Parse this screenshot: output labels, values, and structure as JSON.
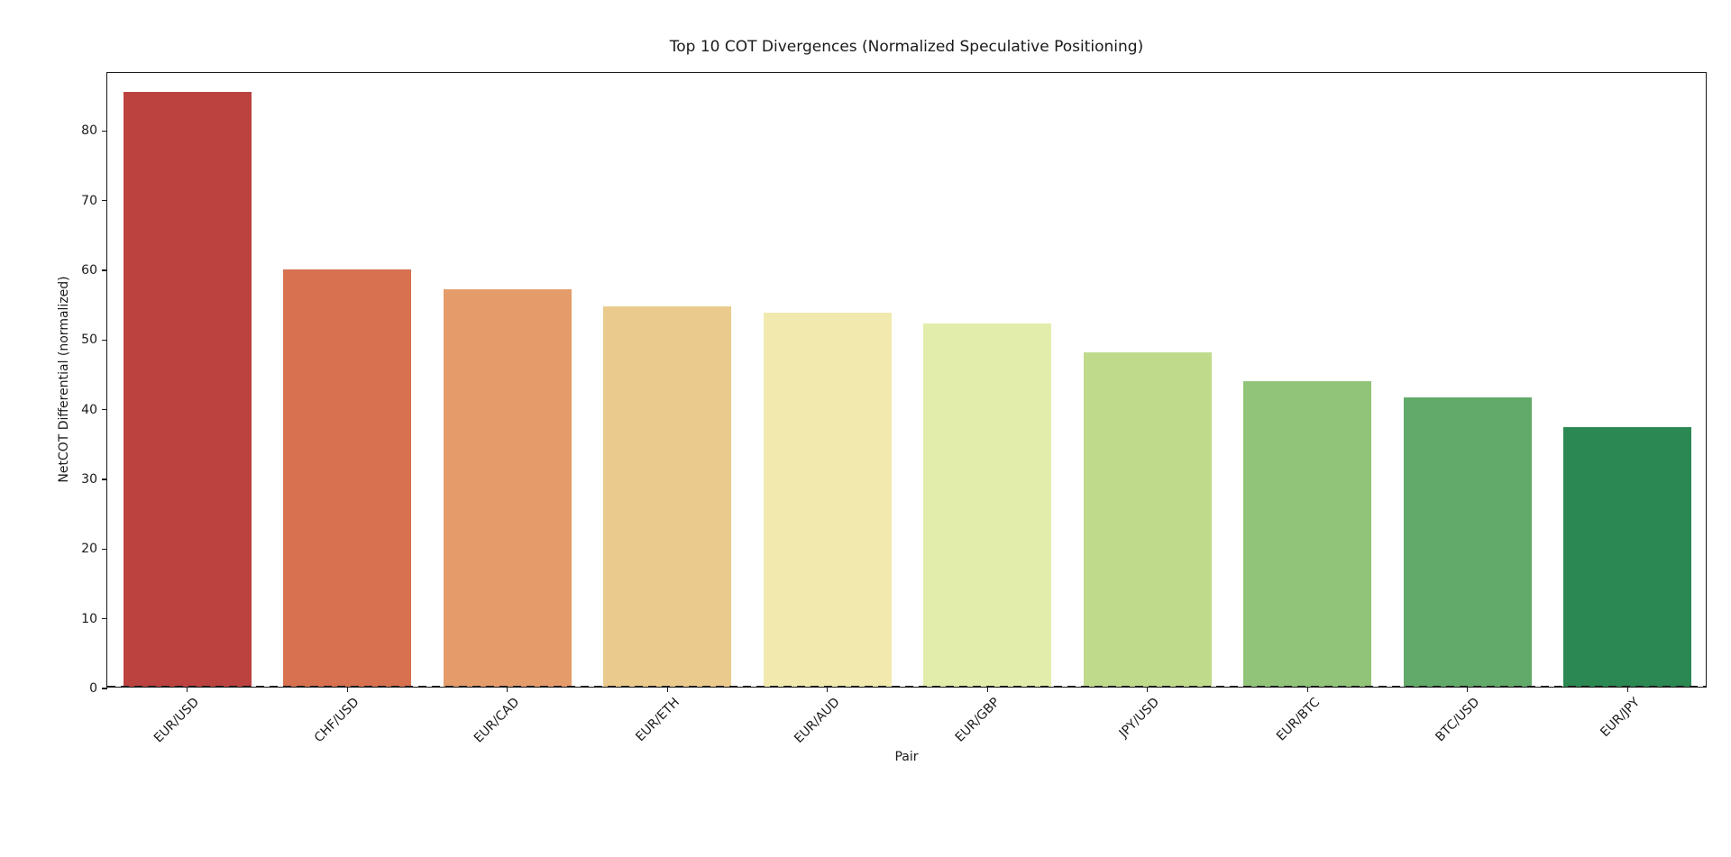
{
  "chart_data": {
    "type": "bar",
    "title": "Top 10 COT Divergences (Normalized Speculative Positioning)",
    "xlabel": "Pair",
    "ylabel": "NetCOT Differential (normalized)",
    "categories": [
      "EUR/USD",
      "CHF/USD",
      "EUR/CAD",
      "EUR/ETH",
      "EUR/AUD",
      "EUR/GBP",
      "JPY/USD",
      "EUR/BTC",
      "BTC/USD",
      "EUR/JPY"
    ],
    "values": [
      85.3,
      59.8,
      57.0,
      54.5,
      53.6,
      52.1,
      48.0,
      43.8,
      41.5,
      37.2
    ],
    "bar_colors": [
      "#bc4240",
      "#d7714f",
      "#e59c6b",
      "#ebcb8d",
      "#f2e9ae",
      "#e3edab",
      "#c0da8c",
      "#91c478",
      "#62aa6a",
      "#2b8852"
    ],
    "ylim": [
      0,
      88.3
    ],
    "yticks": [
      0,
      10,
      20,
      30,
      40,
      50,
      60,
      70,
      80
    ],
    "x_tick_rotation": 45,
    "grid": false,
    "legend": "none",
    "zero_line": {
      "style": "dashed",
      "color": "#1a1a1a"
    },
    "background_color": "#ffffff",
    "axis_color": "#1a1a1a"
  }
}
